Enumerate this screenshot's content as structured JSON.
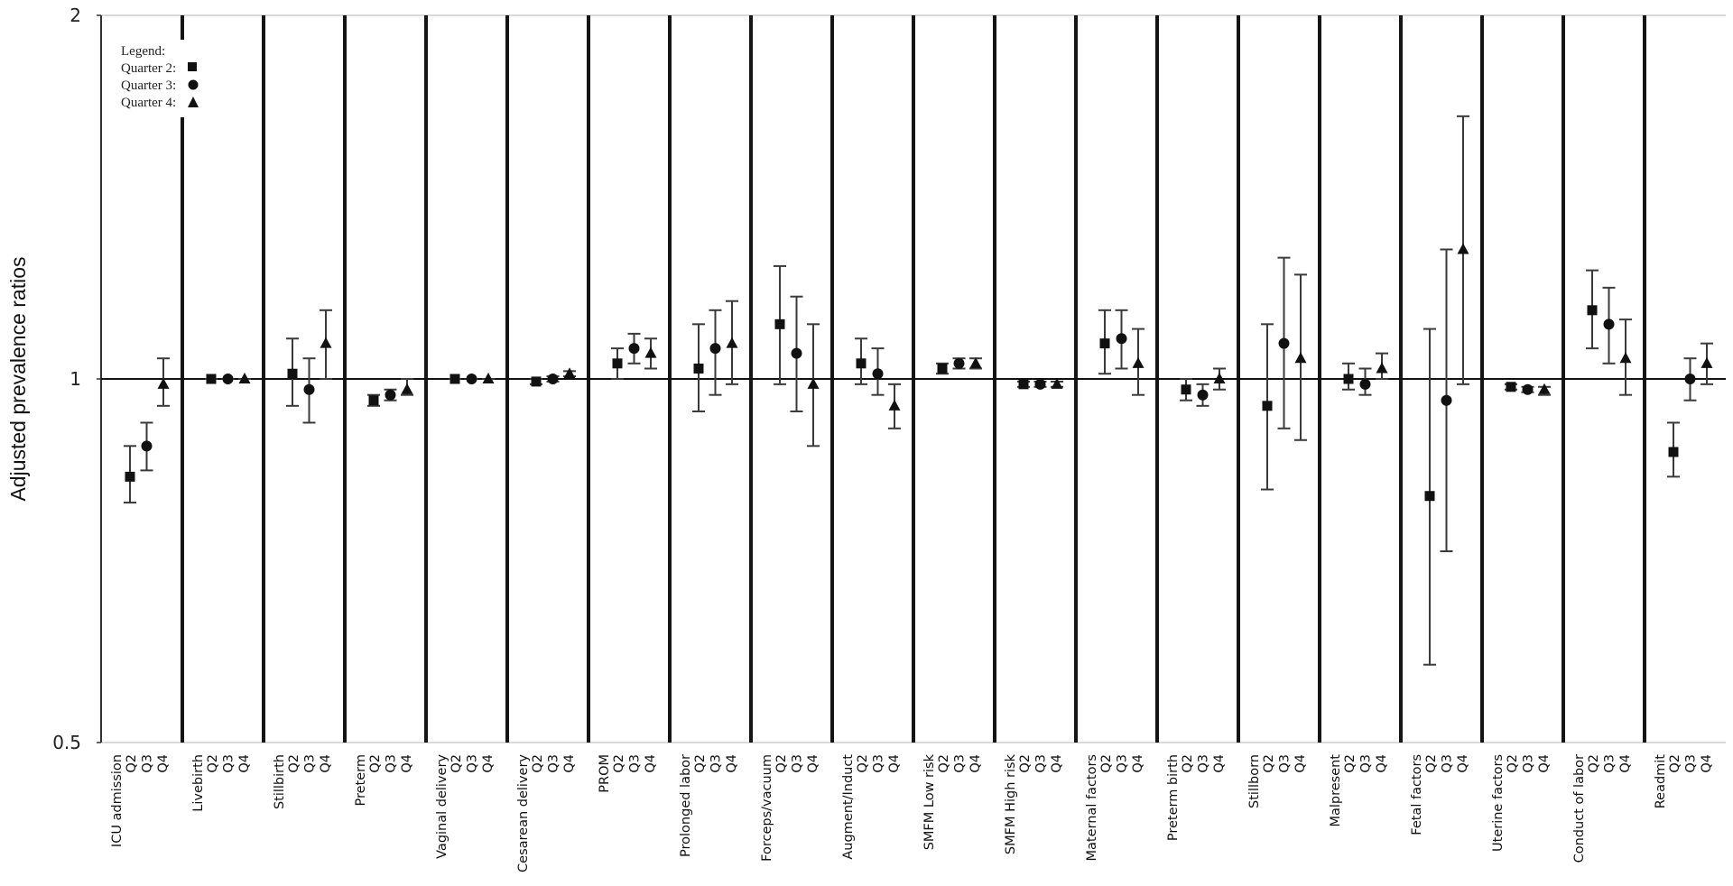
{
  "chart_data": {
    "type": "scatter",
    "subtype": "forest-plot-with-error-bars",
    "title": "",
    "xlabel": "",
    "ylabel": "Adjusted prevalence ratios",
    "yscale": "log",
    "ylim": [
      0.5,
      2
    ],
    "yticks": [
      {
        "value": 2,
        "label": "2"
      },
      {
        "value": 1,
        "label": "1"
      },
      {
        "value": 0.5,
        "label": "0.5"
      }
    ],
    "reference_line": 1,
    "grid": false,
    "legend": {
      "placement": "top-left",
      "title": "Legend:",
      "entries": [
        {
          "label": "Quarter 2:",
          "marker": "square"
        },
        {
          "label": "Quarter 3:",
          "marker": "circle"
        },
        {
          "label": "Quarter 4:",
          "marker": "triangle"
        }
      ]
    },
    "quarter_labels": [
      "Q2",
      "Q3",
      "Q4"
    ],
    "groups": [
      {
        "name": "ICU admission",
        "points": [
          {
            "q": "Q2",
            "value": 0.83,
            "lower": 0.79,
            "upper": 0.88
          },
          {
            "q": "Q3",
            "value": 0.88,
            "lower": 0.84,
            "upper": 0.92
          },
          {
            "q": "Q4",
            "value": 0.99,
            "lower": 0.95,
            "upper": 1.04
          }
        ]
      },
      {
        "name": "Livebirth",
        "points": [
          {
            "q": "Q2",
            "value": 1.0,
            "lower": 1.0,
            "upper": 1.0
          },
          {
            "q": "Q3",
            "value": 1.0,
            "lower": 1.0,
            "upper": 1.0
          },
          {
            "q": "Q4",
            "value": 1.0,
            "lower": 1.0,
            "upper": 1.0
          }
        ]
      },
      {
        "name": "Stillbirth",
        "points": [
          {
            "q": "Q2",
            "value": 1.01,
            "lower": 0.95,
            "upper": 1.08
          },
          {
            "q": "Q3",
            "value": 0.98,
            "lower": 0.92,
            "upper": 1.04
          },
          {
            "q": "Q4",
            "value": 1.07,
            "lower": 1.0,
            "upper": 1.14
          }
        ]
      },
      {
        "name": "Preterm",
        "points": [
          {
            "q": "Q2",
            "value": 0.96,
            "lower": 0.95,
            "upper": 0.97
          },
          {
            "q": "Q3",
            "value": 0.97,
            "lower": 0.96,
            "upper": 0.98
          },
          {
            "q": "Q4",
            "value": 0.98,
            "lower": 0.97,
            "upper": 1.0
          }
        ]
      },
      {
        "name": "Vaginal delivery",
        "points": [
          {
            "q": "Q2",
            "value": 1.0,
            "lower": 1.0,
            "upper": 1.0
          },
          {
            "q": "Q3",
            "value": 1.0,
            "lower": 1.0,
            "upper": 1.0
          },
          {
            "q": "Q4",
            "value": 1.0,
            "lower": 1.0,
            "upper": 1.0
          }
        ]
      },
      {
        "name": "Cesarean delivery",
        "points": [
          {
            "q": "Q2",
            "value": 0.995,
            "lower": 0.99,
            "upper": 1.0
          },
          {
            "q": "Q3",
            "value": 1.0,
            "lower": 0.995,
            "upper": 1.005
          },
          {
            "q": "Q4",
            "value": 1.01,
            "lower": 1.005,
            "upper": 1.015
          }
        ]
      },
      {
        "name": "PROM",
        "points": [
          {
            "q": "Q2",
            "value": 1.03,
            "lower": 1.0,
            "upper": 1.06
          },
          {
            "q": "Q3",
            "value": 1.06,
            "lower": 1.03,
            "upper": 1.09
          },
          {
            "q": "Q4",
            "value": 1.05,
            "lower": 1.02,
            "upper": 1.08
          }
        ]
      },
      {
        "name": "Prolonged labor",
        "points": [
          {
            "q": "Q2",
            "value": 1.02,
            "lower": 0.94,
            "upper": 1.11
          },
          {
            "q": "Q3",
            "value": 1.06,
            "lower": 0.97,
            "upper": 1.14
          },
          {
            "q": "Q4",
            "value": 1.07,
            "lower": 0.99,
            "upper": 1.16
          }
        ]
      },
      {
        "name": "Forceps/vacuum",
        "points": [
          {
            "q": "Q2",
            "value": 1.11,
            "lower": 0.99,
            "upper": 1.24
          },
          {
            "q": "Q3",
            "value": 1.05,
            "lower": 0.94,
            "upper": 1.17
          },
          {
            "q": "Q4",
            "value": 0.99,
            "lower": 0.88,
            "upper": 1.11
          }
        ]
      },
      {
        "name": "Augment/Induct",
        "points": [
          {
            "q": "Q2",
            "value": 1.03,
            "lower": 0.99,
            "upper": 1.08
          },
          {
            "q": "Q3",
            "value": 1.01,
            "lower": 0.97,
            "upper": 1.06
          },
          {
            "q": "Q4",
            "value": 0.95,
            "lower": 0.91,
            "upper": 0.99
          }
        ]
      },
      {
        "name": "SMFM Low risk",
        "points": [
          {
            "q": "Q2",
            "value": 1.02,
            "lower": 1.01,
            "upper": 1.03
          },
          {
            "q": "Q3",
            "value": 1.03,
            "lower": 1.02,
            "upper": 1.04
          },
          {
            "q": "Q4",
            "value": 1.03,
            "lower": 1.02,
            "upper": 1.04
          }
        ]
      },
      {
        "name": "SMFM High risk",
        "points": [
          {
            "q": "Q2",
            "value": 0.99,
            "lower": 0.985,
            "upper": 0.995
          },
          {
            "q": "Q3",
            "value": 0.99,
            "lower": 0.985,
            "upper": 0.995
          },
          {
            "q": "Q4",
            "value": 0.99,
            "lower": 0.985,
            "upper": 0.995
          }
        ]
      },
      {
        "name": "Maternal factors",
        "points": [
          {
            "q": "Q2",
            "value": 1.07,
            "lower": 1.01,
            "upper": 1.14
          },
          {
            "q": "Q3",
            "value": 1.08,
            "lower": 1.02,
            "upper": 1.14
          },
          {
            "q": "Q4",
            "value": 1.03,
            "lower": 0.97,
            "upper": 1.1
          }
        ]
      },
      {
        "name": "Preterm birth",
        "points": [
          {
            "q": "Q2",
            "value": 0.98,
            "lower": 0.96,
            "upper": 1.0
          },
          {
            "q": "Q3",
            "value": 0.97,
            "lower": 0.95,
            "upper": 0.99
          },
          {
            "q": "Q4",
            "value": 1.0,
            "lower": 0.98,
            "upper": 1.02
          }
        ]
      },
      {
        "name": "Stillborn",
        "points": [
          {
            "q": "Q2",
            "value": 0.95,
            "lower": 0.81,
            "upper": 1.11
          },
          {
            "q": "Q3",
            "value": 1.07,
            "lower": 0.91,
            "upper": 1.26
          },
          {
            "q": "Q4",
            "value": 1.04,
            "lower": 0.89,
            "upper": 1.22
          }
        ]
      },
      {
        "name": "Malpresent",
        "points": [
          {
            "q": "Q2",
            "value": 1.0,
            "lower": 0.98,
            "upper": 1.03
          },
          {
            "q": "Q3",
            "value": 0.99,
            "lower": 0.97,
            "upper": 1.02
          },
          {
            "q": "Q4",
            "value": 1.02,
            "lower": 1.0,
            "upper": 1.05
          }
        ]
      },
      {
        "name": "Fetal factors",
        "points": [
          {
            "q": "Q2",
            "value": 0.8,
            "lower": 0.58,
            "upper": 1.1
          },
          {
            "q": "Q3",
            "value": 0.96,
            "lower": 0.72,
            "upper": 1.28
          },
          {
            "q": "Q4",
            "value": 1.28,
            "lower": 0.99,
            "upper": 1.65
          }
        ]
      },
      {
        "name": "Uterine factors",
        "points": [
          {
            "q": "Q2",
            "value": 0.985,
            "lower": 0.98,
            "upper": 0.99
          },
          {
            "q": "Q3",
            "value": 0.98,
            "lower": 0.975,
            "upper": 0.985
          },
          {
            "q": "Q4",
            "value": 0.98,
            "lower": 0.97,
            "upper": 0.985
          }
        ]
      },
      {
        "name": "Conduct of labor",
        "points": [
          {
            "q": "Q2",
            "value": 1.14,
            "lower": 1.06,
            "upper": 1.23
          },
          {
            "q": "Q3",
            "value": 1.11,
            "lower": 1.03,
            "upper": 1.19
          },
          {
            "q": "Q4",
            "value": 1.04,
            "lower": 0.97,
            "upper": 1.12
          }
        ]
      },
      {
        "name": "Readmit",
        "points": [
          {
            "q": "Q2",
            "value": 0.87,
            "lower": 0.83,
            "upper": 0.92
          },
          {
            "q": "Q3",
            "value": 1.0,
            "lower": 0.96,
            "upper": 1.04
          },
          {
            "q": "Q4",
            "value": 1.03,
            "lower": 0.99,
            "upper": 1.07
          }
        ]
      }
    ]
  }
}
